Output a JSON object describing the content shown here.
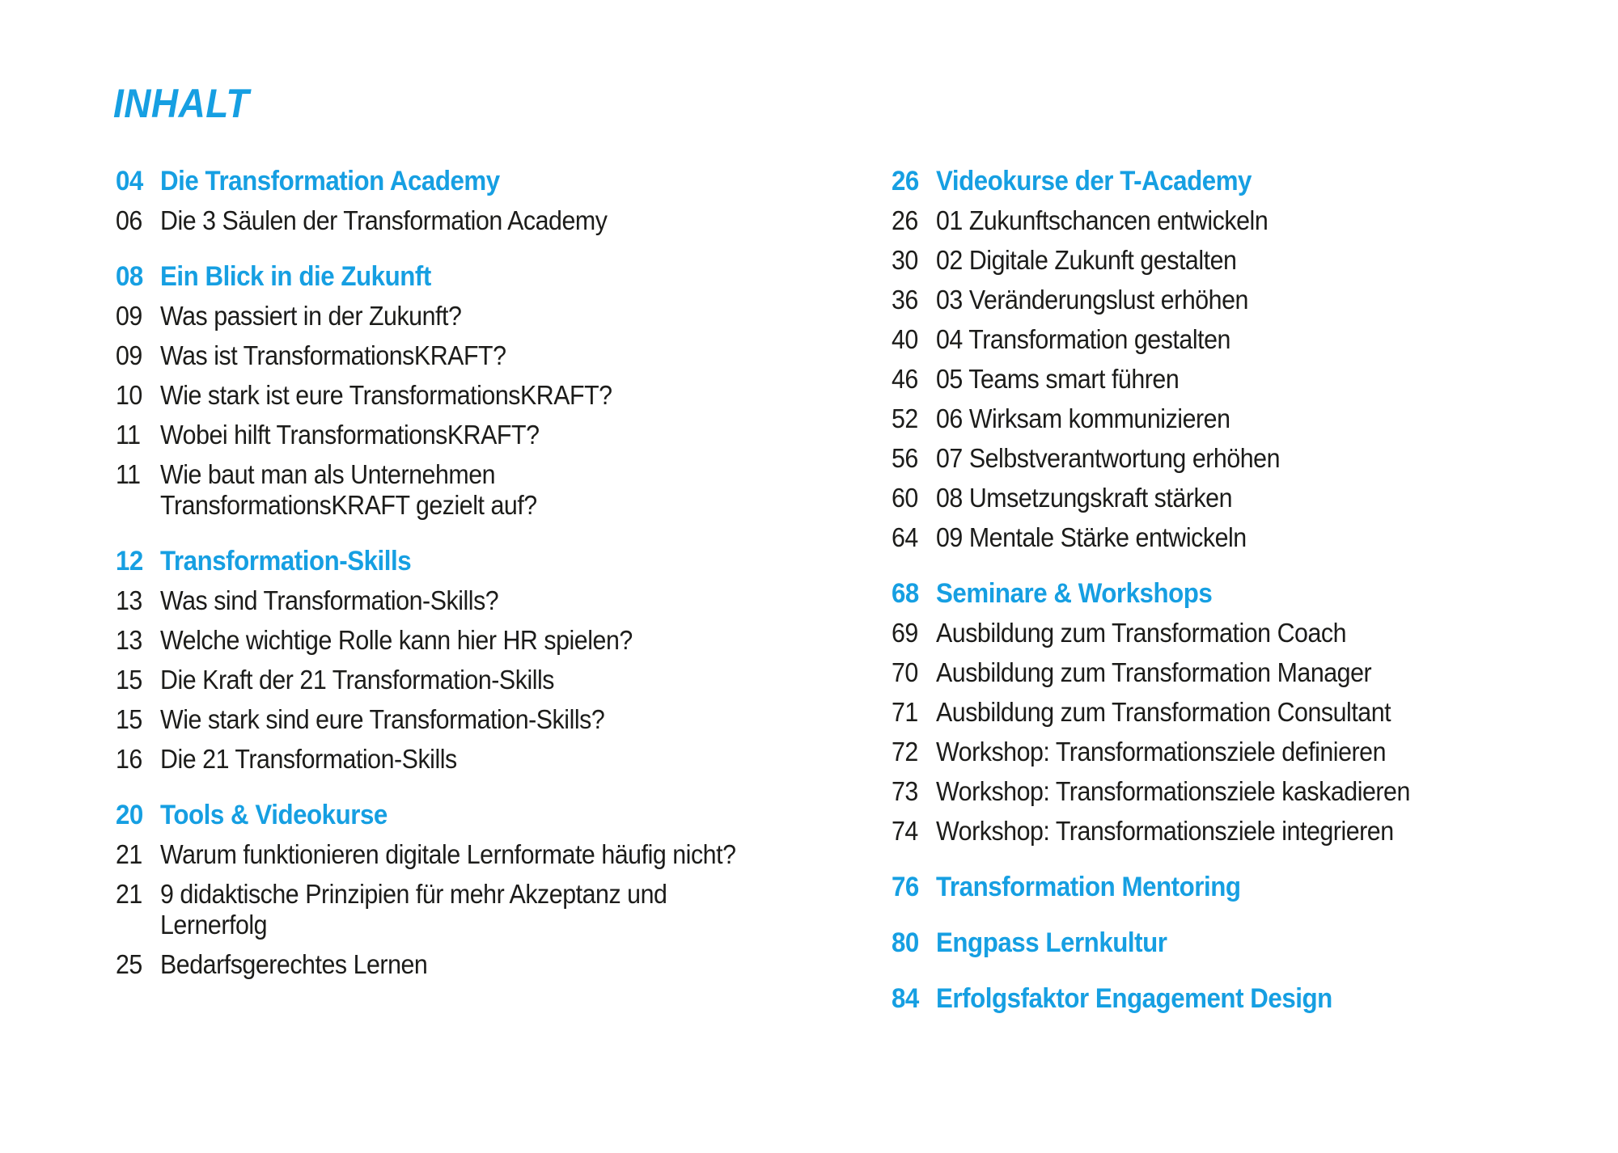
{
  "page": {
    "title": "INHALT",
    "accent_color": "#169fe2",
    "text_color": "#1c1c1a",
    "background_color": "#ffffff"
  },
  "toc": {
    "columns": [
      {
        "groups": [
          {
            "page": "04",
            "title": "Die Transformation Academy",
            "items": [
              {
                "page": "06",
                "text": "Die 3 Säulen der Transformation Academy"
              }
            ]
          },
          {
            "page": "08",
            "title": "Ein Blick in die Zukunft",
            "items": [
              {
                "page": "09",
                "text": "Was passiert in der Zukunft?"
              },
              {
                "page": "09",
                "text": "Was ist TransformationsKRAFT?"
              },
              {
                "page": "10",
                "text": "Wie stark ist eure TransformationsKRAFT?"
              },
              {
                "page": "11",
                "text": "Wobei hilft TransformationsKRAFT?"
              },
              {
                "page": "11",
                "text": "Wie baut man als Unternehmen\nTransformationsKRAFT gezielt auf?"
              }
            ]
          },
          {
            "page": "12",
            "title": "Transformation-Skills",
            "items": [
              {
                "page": "13",
                "text": "Was sind Transformation-Skills?"
              },
              {
                "page": "13",
                "text": "Welche wichtige Rolle kann hier HR spielen?"
              },
              {
                "page": "15",
                "text": "Die Kraft der 21 Transformation-Skills"
              },
              {
                "page": "15",
                "text": "Wie stark sind eure Transformation-Skills?"
              },
              {
                "page": "16",
                "text": "Die 21 Transformation-Skills"
              }
            ]
          },
          {
            "page": "20",
            "title": "Tools & Videokurse",
            "items": [
              {
                "page": "21",
                "text": "Warum funktionieren digitale Lernformate häufig nicht?"
              },
              {
                "page": "21",
                "text": "9 didaktische Prinzipien für mehr Akzeptanz und\nLernerfolg"
              },
              {
                "page": "25",
                "text": "Bedarfsgerechtes Lernen"
              }
            ]
          }
        ]
      },
      {
        "groups": [
          {
            "page": "26",
            "title": "Videokurse der T-Academy",
            "items": [
              {
                "page": "26",
                "text": "01 Zukunftschancen entwickeln"
              },
              {
                "page": "30",
                "text": "02 Digitale Zukunft gestalten"
              },
              {
                "page": "36",
                "text": "03 Veränderungslust erhöhen"
              },
              {
                "page": "40",
                "text": "04 Transformation gestalten"
              },
              {
                "page": "46",
                "text": "05 Teams smart führen"
              },
              {
                "page": "52",
                "text": "06 Wirksam kommunizieren"
              },
              {
                "page": "56",
                "text": "07 Selbstverantwortung erhöhen"
              },
              {
                "page": "60",
                "text": "08 Umsetzungskraft stärken"
              },
              {
                "page": "64",
                "text": "09 Mentale Stärke entwickeln"
              }
            ]
          },
          {
            "page": "68",
            "title": "Seminare & Workshops",
            "items": [
              {
                "page": "69",
                "text": "Ausbildung zum Transformation Coach"
              },
              {
                "page": "70",
                "text": "Ausbildung zum Transformation Manager"
              },
              {
                "page": "71",
                "text": "Ausbildung zum Transformation Consultant"
              },
              {
                "page": "72",
                "text": "Workshop: Transformationsziele definieren"
              },
              {
                "page": "73",
                "text": "Workshop: Transformationsziele kaskadieren"
              },
              {
                "page": "74",
                "text": "Workshop: Transformationsziele integrieren"
              }
            ]
          },
          {
            "page": "76",
            "title": "Transformation Mentoring",
            "items": []
          },
          {
            "page": "80",
            "title": "Engpass Lernkultur",
            "items": []
          },
          {
            "page": "84",
            "title": "Erfolgsfaktor Engagement Design",
            "items": []
          }
        ]
      }
    ]
  }
}
